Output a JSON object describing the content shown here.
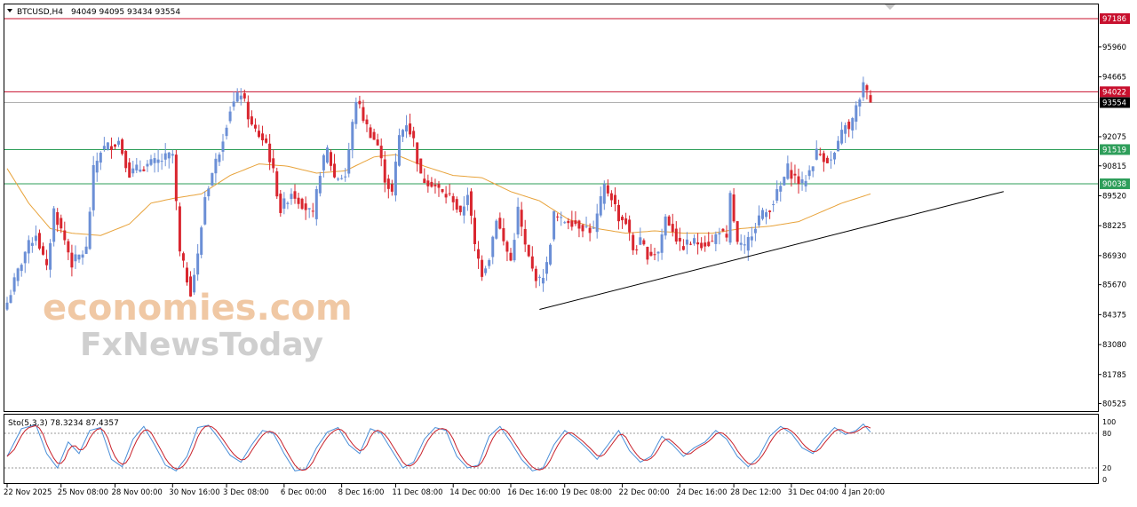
{
  "header": {
    "symbol": "BTCUSD,H4",
    "ohlc": "94049 94095 93434 93554"
  },
  "stoch_header": "Sto(5,3,3) 78.3234 87.4357",
  "watermark": {
    "line1": "economies.com",
    "line2": "FxNewsToday"
  },
  "colors": {
    "bull": "#6b8fd6",
    "bear": "#d9262f",
    "resistance": "#c8102e",
    "support": "#2e9e5a",
    "ma": "#e8a33b",
    "current": "#000000"
  },
  "chart_data": {
    "type": "candlestick",
    "title": "BTCUSD,H4",
    "ylim": [
      80200,
      97800
    ],
    "y_ticks": [
      95960,
      94665,
      92075,
      90815,
      89520,
      88225,
      86930,
      85670,
      84375,
      83080,
      81785,
      80525
    ],
    "x_labels": [
      {
        "idx": 0,
        "label": "22 Nov 2025"
      },
      {
        "idx": 15,
        "label": "25 Nov 08:00"
      },
      {
        "idx": 30,
        "label": "28 Nov 00:00"
      },
      {
        "idx": 46,
        "label": "30 Nov 16:00"
      },
      {
        "idx": 61,
        "label": "3 Dec 08:00"
      },
      {
        "idx": 77,
        "label": "6 Dec 00:00"
      },
      {
        "idx": 93,
        "label": "8 Dec 16:00"
      },
      {
        "idx": 108,
        "label": "11 Dec 08:00"
      },
      {
        "idx": 124,
        "label": "14 Dec 00:00"
      },
      {
        "idx": 140,
        "label": "16 Dec 16:00"
      },
      {
        "idx": 155,
        "label": "19 Dec 08:00"
      },
      {
        "idx": 171,
        "label": "22 Dec 00:00"
      },
      {
        "idx": 187,
        "label": "24 Dec 16:00"
      },
      {
        "idx": 202,
        "label": "28 Dec 12:00"
      },
      {
        "idx": 218,
        "label": "31 Dec 04:00"
      },
      {
        "idx": 233,
        "label": "4 Jan 20:00"
      }
    ],
    "levels": [
      {
        "name": "resistance-1",
        "value": 97186,
        "label": "97186",
        "kind": "resistance"
      },
      {
        "name": "resistance-2",
        "value": 94022,
        "label": "94022",
        "kind": "resistance"
      },
      {
        "name": "current-price",
        "value": 93554,
        "label": "93554",
        "kind": "current"
      },
      {
        "name": "support-1",
        "value": 91519,
        "label": "91519",
        "kind": "support"
      },
      {
        "name": "support-2",
        "value": 90038,
        "label": "90038",
        "kind": "support"
      }
    ],
    "trendline": {
      "from": {
        "idx": 148,
        "price": 84600
      },
      "to": {
        "idx": 277,
        "price": 89700
      }
    },
    "anchors": [
      [
        0,
        84900
      ],
      [
        2,
        85800
      ],
      [
        5,
        87100
      ],
      [
        8,
        87900
      ],
      [
        11,
        86300
      ],
      [
        13,
        88900
      ],
      [
        16,
        87600
      ],
      [
        18,
        86600
      ],
      [
        22,
        87200
      ],
      [
        24,
        90600
      ],
      [
        26,
        91500
      ],
      [
        31,
        91900
      ],
      [
        34,
        90500
      ],
      [
        38,
        90800
      ],
      [
        42,
        91000
      ],
      [
        46,
        91300
      ],
      [
        48,
        87000
      ],
      [
        51,
        85400
      ],
      [
        53,
        86900
      ],
      [
        55,
        89500
      ],
      [
        59,
        91500
      ],
      [
        62,
        93300
      ],
      [
        65,
        94000
      ],
      [
        68,
        92500
      ],
      [
        72,
        91800
      ],
      [
        74,
        90500
      ],
      [
        76,
        88900
      ],
      [
        79,
        89700
      ],
      [
        82,
        89200
      ],
      [
        85,
        88600
      ],
      [
        87,
        90600
      ],
      [
        89,
        91500
      ],
      [
        91,
        90300
      ],
      [
        94,
        90400
      ],
      [
        97,
        93700
      ],
      [
        100,
        92500
      ],
      [
        103,
        91700
      ],
      [
        105,
        90300
      ],
      [
        107,
        89600
      ],
      [
        109,
        92100
      ],
      [
        111,
        92700
      ],
      [
        113,
        91900
      ],
      [
        115,
        90300
      ],
      [
        118,
        90100
      ],
      [
        121,
        89600
      ],
      [
        124,
        89400
      ],
      [
        126,
        88600
      ],
      [
        128,
        89700
      ],
      [
        130,
        87300
      ],
      [
        132,
        86200
      ],
      [
        134,
        86900
      ],
      [
        136,
        88600
      ],
      [
        138,
        87500
      ],
      [
        140,
        86700
      ],
      [
        142,
        88900
      ],
      [
        144,
        87300
      ],
      [
        146,
        86300
      ],
      [
        148,
        85800
      ],
      [
        150,
        86500
      ],
      [
        152,
        88700
      ],
      [
        154,
        88400
      ],
      [
        156,
        88500
      ],
      [
        160,
        88200
      ],
      [
        163,
        88000
      ],
      [
        166,
        89900
      ],
      [
        168,
        89500
      ],
      [
        170,
        88600
      ],
      [
        172,
        88400
      ],
      [
        174,
        87200
      ],
      [
        176,
        87500
      ],
      [
        178,
        87000
      ],
      [
        181,
        87100
      ],
      [
        183,
        88600
      ],
      [
        185,
        88100
      ],
      [
        187,
        87300
      ],
      [
        190,
        87500
      ],
      [
        193,
        87500
      ],
      [
        196,
        87500
      ],
      [
        198,
        88100
      ],
      [
        200,
        87500
      ],
      [
        201,
        89500
      ],
      [
        203,
        87400
      ],
      [
        205,
        87200
      ],
      [
        207,
        88000
      ],
      [
        209,
        88600
      ],
      [
        211,
        88800
      ],
      [
        213,
        89300
      ],
      [
        215,
        89900
      ],
      [
        217,
        90700
      ],
      [
        219,
        90300
      ],
      [
        221,
        90000
      ],
      [
        223,
        90600
      ],
      [
        225,
        91400
      ],
      [
        227,
        91200
      ],
      [
        229,
        91000
      ],
      [
        231,
        91700
      ],
      [
        233,
        92700
      ],
      [
        234,
        92300
      ],
      [
        236,
        93300
      ],
      [
        238,
        94300
      ],
      [
        240,
        93554
      ]
    ],
    "ma_anchors": [
      [
        0,
        90700
      ],
      [
        6,
        89200
      ],
      [
        12,
        88100
      ],
      [
        18,
        87900
      ],
      [
        26,
        87800
      ],
      [
        34,
        88300
      ],
      [
        40,
        89200
      ],
      [
        46,
        89400
      ],
      [
        54,
        89600
      ],
      [
        62,
        90400
      ],
      [
        70,
        90900
      ],
      [
        78,
        90800
      ],
      [
        86,
        90500
      ],
      [
        94,
        90600
      ],
      [
        102,
        91200
      ],
      [
        108,
        91300
      ],
      [
        116,
        90800
      ],
      [
        124,
        90400
      ],
      [
        132,
        90300
      ],
      [
        140,
        89700
      ],
      [
        148,
        89300
      ],
      [
        156,
        88500
      ],
      [
        164,
        88100
      ],
      [
        172,
        87900
      ],
      [
        180,
        88000
      ],
      [
        188,
        87900
      ],
      [
        196,
        87900
      ],
      [
        204,
        88100
      ],
      [
        212,
        88200
      ],
      [
        220,
        88400
      ],
      [
        226,
        88800
      ],
      [
        232,
        89200
      ],
      [
        240,
        89600
      ]
    ],
    "stochastic": {
      "name": "Sto(5,3,3)",
      "main": 78.3234,
      "signal": 87.4357,
      "levels": [
        80,
        20
      ],
      "y_ticks": [
        100,
        80,
        20,
        0
      ],
      "anchors": [
        [
          0,
          40
        ],
        [
          4,
          88
        ],
        [
          8,
          95
        ],
        [
          11,
          45
        ],
        [
          14,
          20
        ],
        [
          17,
          65
        ],
        [
          20,
          45
        ],
        [
          23,
          85
        ],
        [
          26,
          90
        ],
        [
          29,
          35
        ],
        [
          32,
          22
        ],
        [
          35,
          70
        ],
        [
          38,
          92
        ],
        [
          41,
          60
        ],
        [
          44,
          25
        ],
        [
          47,
          15
        ],
        [
          50,
          40
        ],
        [
          53,
          90
        ],
        [
          56,
          94
        ],
        [
          59,
          70
        ],
        [
          62,
          42
        ],
        [
          65,
          30
        ],
        [
          68,
          60
        ],
        [
          71,
          85
        ],
        [
          74,
          80
        ],
        [
          77,
          45
        ],
        [
          80,
          15
        ],
        [
          83,
          18
        ],
        [
          86,
          55
        ],
        [
          89,
          82
        ],
        [
          92,
          90
        ],
        [
          95,
          60
        ],
        [
          98,
          45
        ],
        [
          101,
          88
        ],
        [
          104,
          80
        ],
        [
          107,
          50
        ],
        [
          110,
          20
        ],
        [
          113,
          30
        ],
        [
          116,
          70
        ],
        [
          119,
          90
        ],
        [
          122,
          85
        ],
        [
          125,
          40
        ],
        [
          128,
          20
        ],
        [
          131,
          25
        ],
        [
          134,
          75
        ],
        [
          137,
          92
        ],
        [
          140,
          65
        ],
        [
          143,
          35
        ],
        [
          146,
          15
        ],
        [
          149,
          20
        ],
        [
          152,
          60
        ],
        [
          155,
          85
        ],
        [
          158,
          72
        ],
        [
          161,
          55
        ],
        [
          164,
          35
        ],
        [
          167,
          60
        ],
        [
          170,
          85
        ],
        [
          173,
          50
        ],
        [
          176,
          30
        ],
        [
          179,
          40
        ],
        [
          182,
          75
        ],
        [
          185,
          60
        ],
        [
          188,
          40
        ],
        [
          191,
          55
        ],
        [
          194,
          65
        ],
        [
          197,
          85
        ],
        [
          200,
          70
        ],
        [
          203,
          40
        ],
        [
          206,
          22
        ],
        [
          209,
          40
        ],
        [
          212,
          75
        ],
        [
          215,
          92
        ],
        [
          218,
          80
        ],
        [
          221,
          55
        ],
        [
          224,
          45
        ],
        [
          227,
          70
        ],
        [
          230,
          90
        ],
        [
          233,
          78
        ],
        [
          236,
          85
        ],
        [
          238,
          96
        ],
        [
          240,
          82
        ]
      ]
    }
  }
}
